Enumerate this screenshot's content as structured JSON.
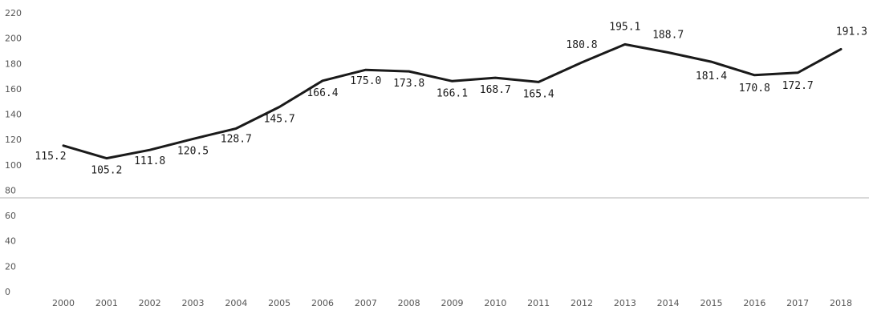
{
  "chart_data": {
    "type": "line",
    "title": "",
    "xlabel": "",
    "ylabel": "",
    "categories": [
      "2000",
      "2001",
      "2002",
      "2003",
      "2004",
      "2005",
      "2006",
      "2007",
      "2008",
      "2009",
      "2010",
      "2011",
      "2012",
      "2013",
      "2014",
      "2015",
      "2016",
      "2017",
      "2018"
    ],
    "series": [
      {
        "values": [
          115.2,
          105.2,
          111.8,
          120.5,
          128.7,
          145.7,
          166.4,
          175.0,
          173.8,
          166.1,
          168.7,
          165.4,
          180.8,
          195.1,
          188.7,
          181.4,
          170.8,
          172.7,
          191.3
        ]
      }
    ],
    "data_labels": [
      "115.2",
      "105.2",
      "111.8",
      "120.5",
      "128.7",
      "145.7",
      "166.4",
      "175.0",
      "173.8",
      "166.1",
      "168.7",
      "165.4",
      "180.8",
      "195.1",
      "188.7",
      "181.4",
      "170.8",
      "172.7",
      "191.3"
    ],
    "x_tick_labels": [
      "2000",
      "2001",
      "2002",
      "2003",
      "2004",
      "2005",
      "2006",
      "2007",
      "2008",
      "2009",
      "2010",
      "2011",
      "2012",
      "2013",
      "2014",
      "2015",
      "2016",
      "2017",
      "2018"
    ],
    "y_ticks": [
      0,
      20,
      40,
      60,
      80,
      100,
      120,
      140,
      160,
      180,
      200,
      220
    ],
    "ylim": [
      0,
      220
    ],
    "grid": false,
    "legend": "none",
    "colors": {
      "line": "#1a1a1a",
      "text": "#555555",
      "divider": "#d9d9d9"
    }
  }
}
